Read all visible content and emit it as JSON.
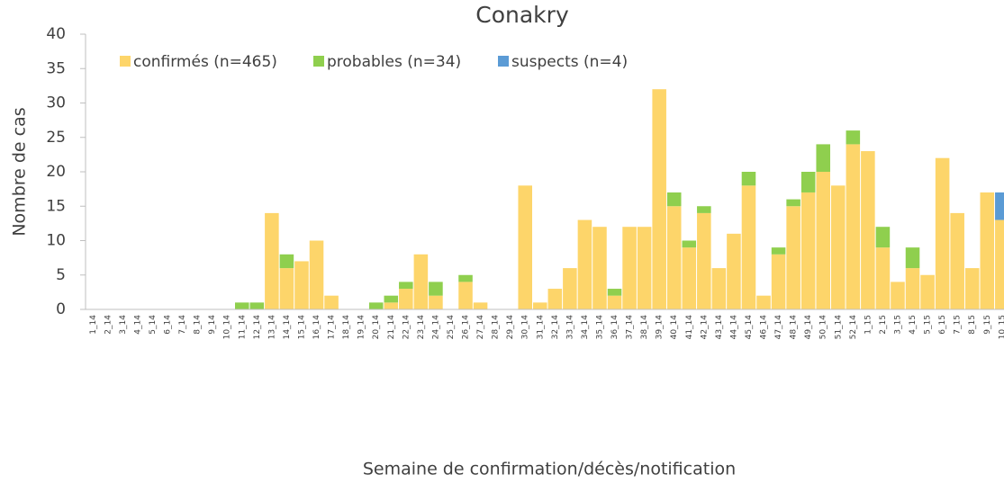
{
  "chart_data": {
    "type": "stacked_bar",
    "title": "Conakry",
    "x_label": "Semaine de confirmation/décès/notification",
    "y_label": "Nombre de cas",
    "categories": [
      "1_14",
      "2_14",
      "3_14",
      "4_14",
      "5_14",
      "6_14",
      "7_14",
      "8_14",
      "9_14",
      "10_14",
      "11_14",
      "12_14",
      "13_14",
      "14_14",
      "15_14",
      "16_14",
      "17_14",
      "18_14",
      "19_14",
      "20_14",
      "21_14",
      "22_14",
      "23_14",
      "24_14",
      "25_14",
      "26_14",
      "27_14",
      "28_14",
      "29_14",
      "30_14",
      "31_14",
      "32_14",
      "33_14",
      "34_14",
      "35_14",
      "36_14",
      "37_14",
      "38_14",
      "39_14",
      "40_14",
      "41_14",
      "42_14",
      "43_14",
      "44_14",
      "45_14",
      "46_14",
      "47_14",
      "48_14",
      "49_14",
      "50_14",
      "51_14",
      "52_14",
      "1_15",
      "2_15",
      "3_15",
      "4_15",
      "5_15",
      "6_15",
      "7_15",
      "8_15",
      "9_15",
      "10_15"
    ],
    "series": [
      {
        "name": "confirmés (n=465)",
        "color": "#fdd56a",
        "values": [
          0,
          0,
          0,
          0,
          0,
          0,
          0,
          0,
          0,
          0,
          0,
          0,
          14,
          6,
          7,
          10,
          2,
          0,
          0,
          0,
          1,
          3,
          8,
          2,
          0,
          4,
          1,
          0,
          0,
          18,
          1,
          3,
          6,
          13,
          12,
          2,
          12,
          12,
          32,
          15,
          9,
          14,
          6,
          11,
          18,
          2,
          8,
          15,
          17,
          20,
          18,
          24,
          23,
          9,
          4,
          6,
          5,
          22,
          14,
          6,
          17,
          13
        ]
      },
      {
        "name": "probables (n=34)",
        "color": "#8fcf4e",
        "values": [
          0,
          0,
          0,
          0,
          0,
          0,
          0,
          0,
          0,
          0,
          1,
          1,
          0,
          2,
          0,
          0,
          0,
          0,
          0,
          1,
          1,
          1,
          0,
          2,
          0,
          1,
          0,
          0,
          0,
          0,
          0,
          0,
          0,
          0,
          0,
          1,
          0,
          0,
          0,
          2,
          1,
          1,
          0,
          0,
          2,
          0,
          1,
          1,
          3,
          4,
          0,
          2,
          0,
          3,
          0,
          3,
          0,
          0,
          0,
          0,
          0,
          0
        ]
      },
      {
        "name": "suspects (n=4)",
        "color": "#5b9bd5",
        "values": [
          0,
          0,
          0,
          0,
          0,
          0,
          0,
          0,
          0,
          0,
          0,
          0,
          0,
          0,
          0,
          0,
          0,
          0,
          0,
          0,
          0,
          0,
          0,
          0,
          0,
          0,
          0,
          0,
          0,
          0,
          0,
          0,
          0,
          0,
          0,
          0,
          0,
          0,
          0,
          0,
          0,
          0,
          0,
          0,
          0,
          0,
          0,
          0,
          0,
          0,
          0,
          0,
          0,
          0,
          0,
          0,
          0,
          0,
          0,
          0,
          0,
          4
        ]
      }
    ],
    "ylim": [
      0,
      40
    ],
    "yticks": [
      0,
      5,
      10,
      15,
      20,
      25,
      30,
      35,
      40
    ]
  }
}
